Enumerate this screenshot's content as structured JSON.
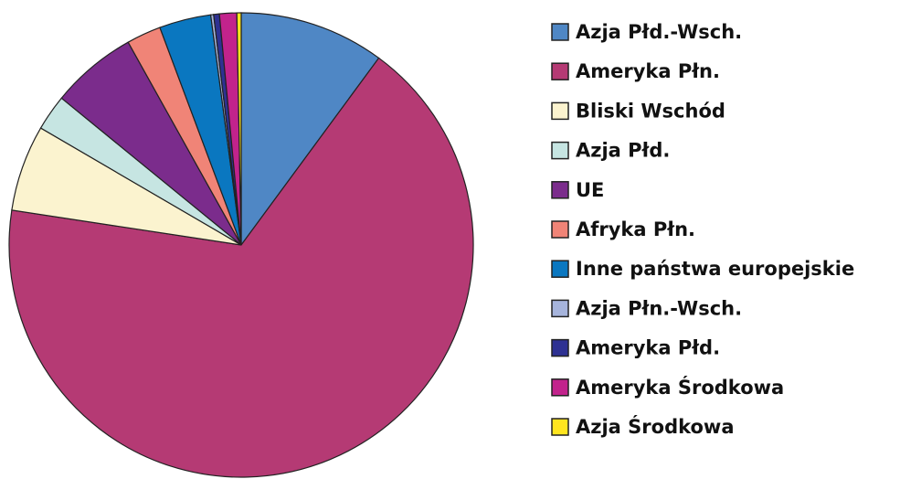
{
  "chart_data": {
    "type": "pie",
    "categories": [
      "Azja Płd.-Wsch.",
      "Ameryka Płn.",
      "Bliski Wschód",
      "Azja Płd.",
      "UE",
      "Afryka Płn.",
      "Inne państwa europejskie",
      "Azja Płn.-Wsch.",
      "Ameryka Płd.",
      "Ameryka Środkowa",
      "Azja Środkowa"
    ],
    "values": [
      10.1,
      67.3,
      6,
      2.5,
      6,
      2.4,
      3.6,
      0.2,
      0.4,
      1.2,
      0.3
    ],
    "colors": [
      "#4f87c5",
      "#b53a74",
      "#fbf3cf",
      "#c6e5e2",
      "#7b2c8c",
      "#f08477",
      "#0a77c0",
      "#a6b4dc",
      "#2e3192",
      "#c2238c",
      "#ffe51f"
    ],
    "legend": "right"
  }
}
